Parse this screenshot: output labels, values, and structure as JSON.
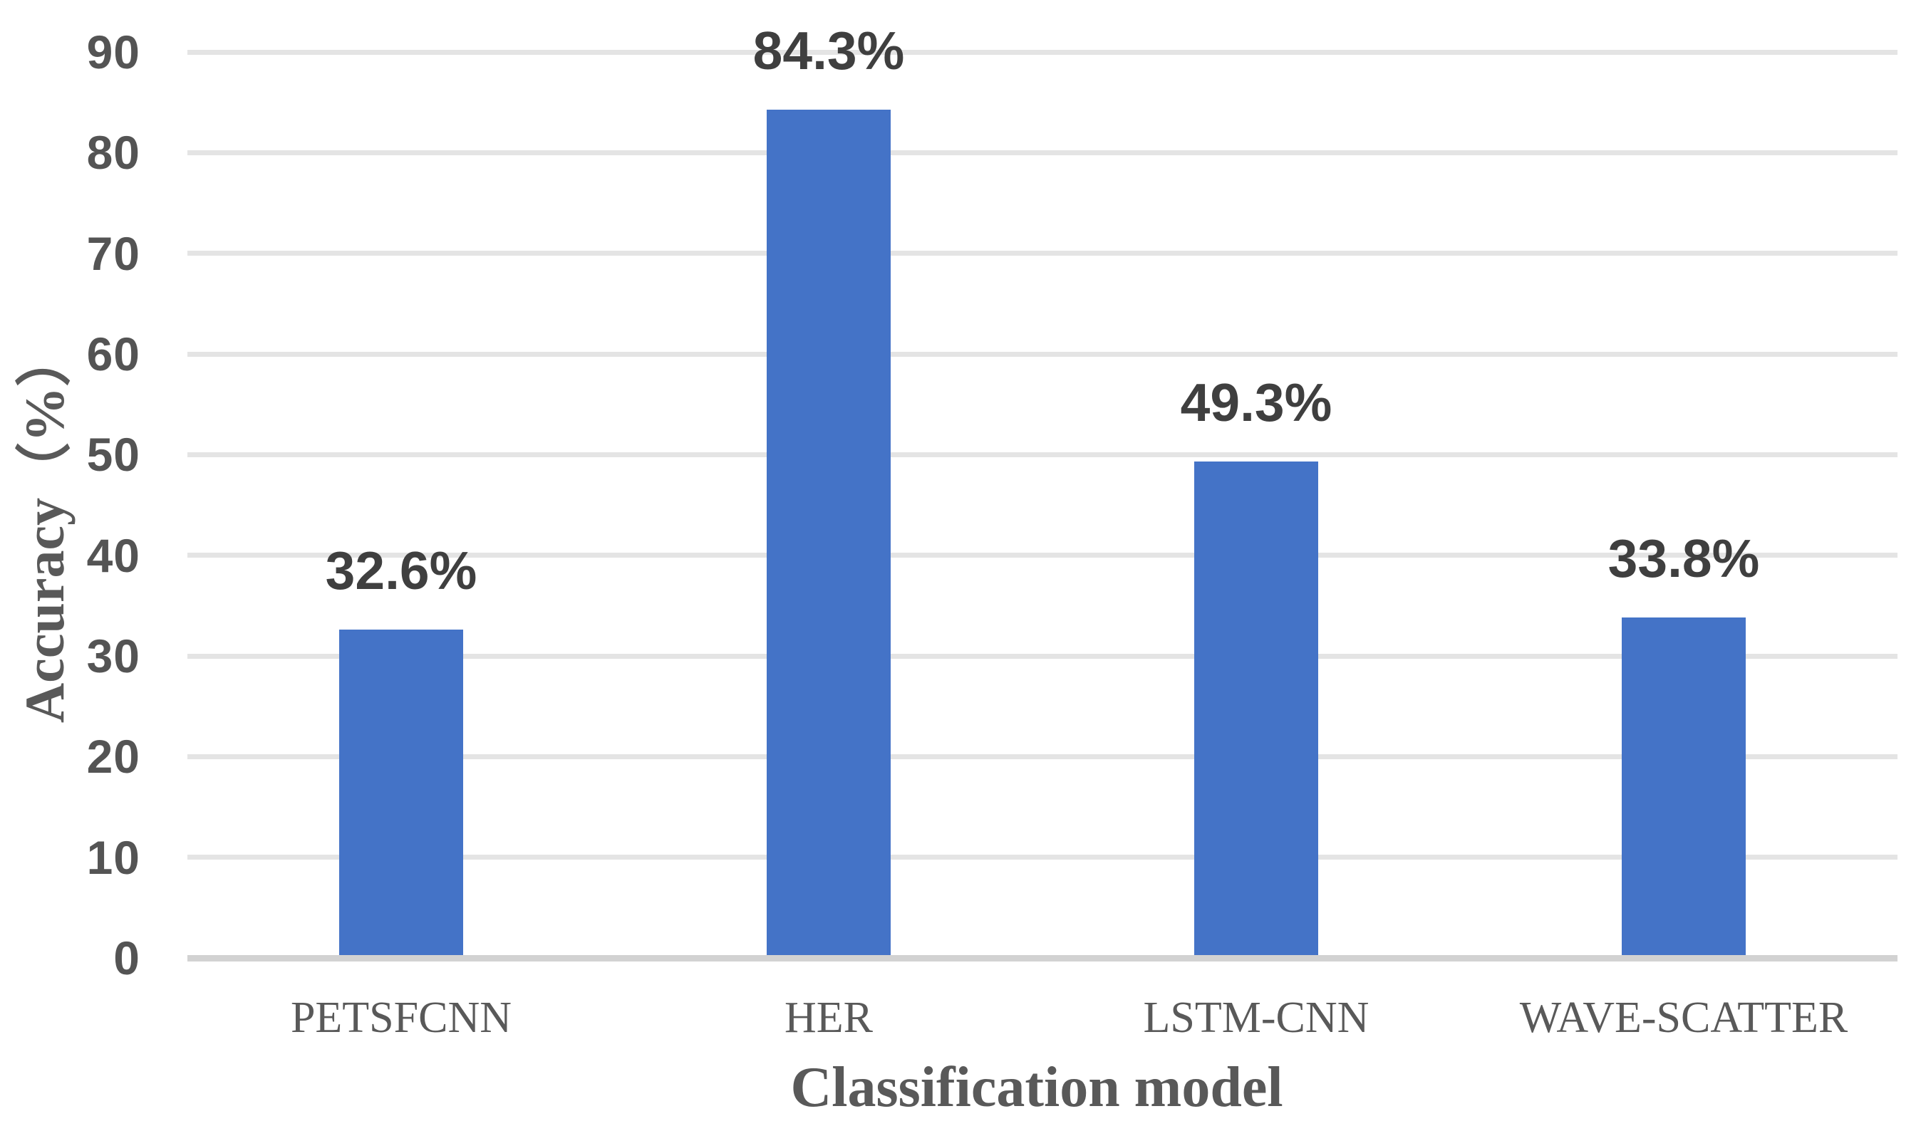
{
  "chart_data": {
    "type": "bar",
    "title": "",
    "xlabel": "Classification model",
    "ylabel": "Accuracy（%）",
    "categories": [
      "PETSFCNN",
      "HER",
      "LSTM-CNN",
      "WAVE-SCATTER"
    ],
    "values": [
      32.6,
      84.3,
      49.3,
      33.8
    ],
    "data_labels": [
      "32.6%",
      "84.3%",
      "49.3%",
      "33.8%"
    ],
    "ylim": [
      0,
      90
    ],
    "yticks": [
      0,
      10,
      20,
      30,
      40,
      50,
      60,
      70,
      80,
      90
    ],
    "grid": "horizontal-only",
    "legend_position": "none",
    "colors": {
      "bar": "#4473C7",
      "gridline": "#E4E4E4",
      "axis_line": "#D2D2D2",
      "tick_label": "#545454",
      "data_label": "#3F3F3F",
      "category_label": "#595959",
      "axis_title": "#595959"
    }
  }
}
